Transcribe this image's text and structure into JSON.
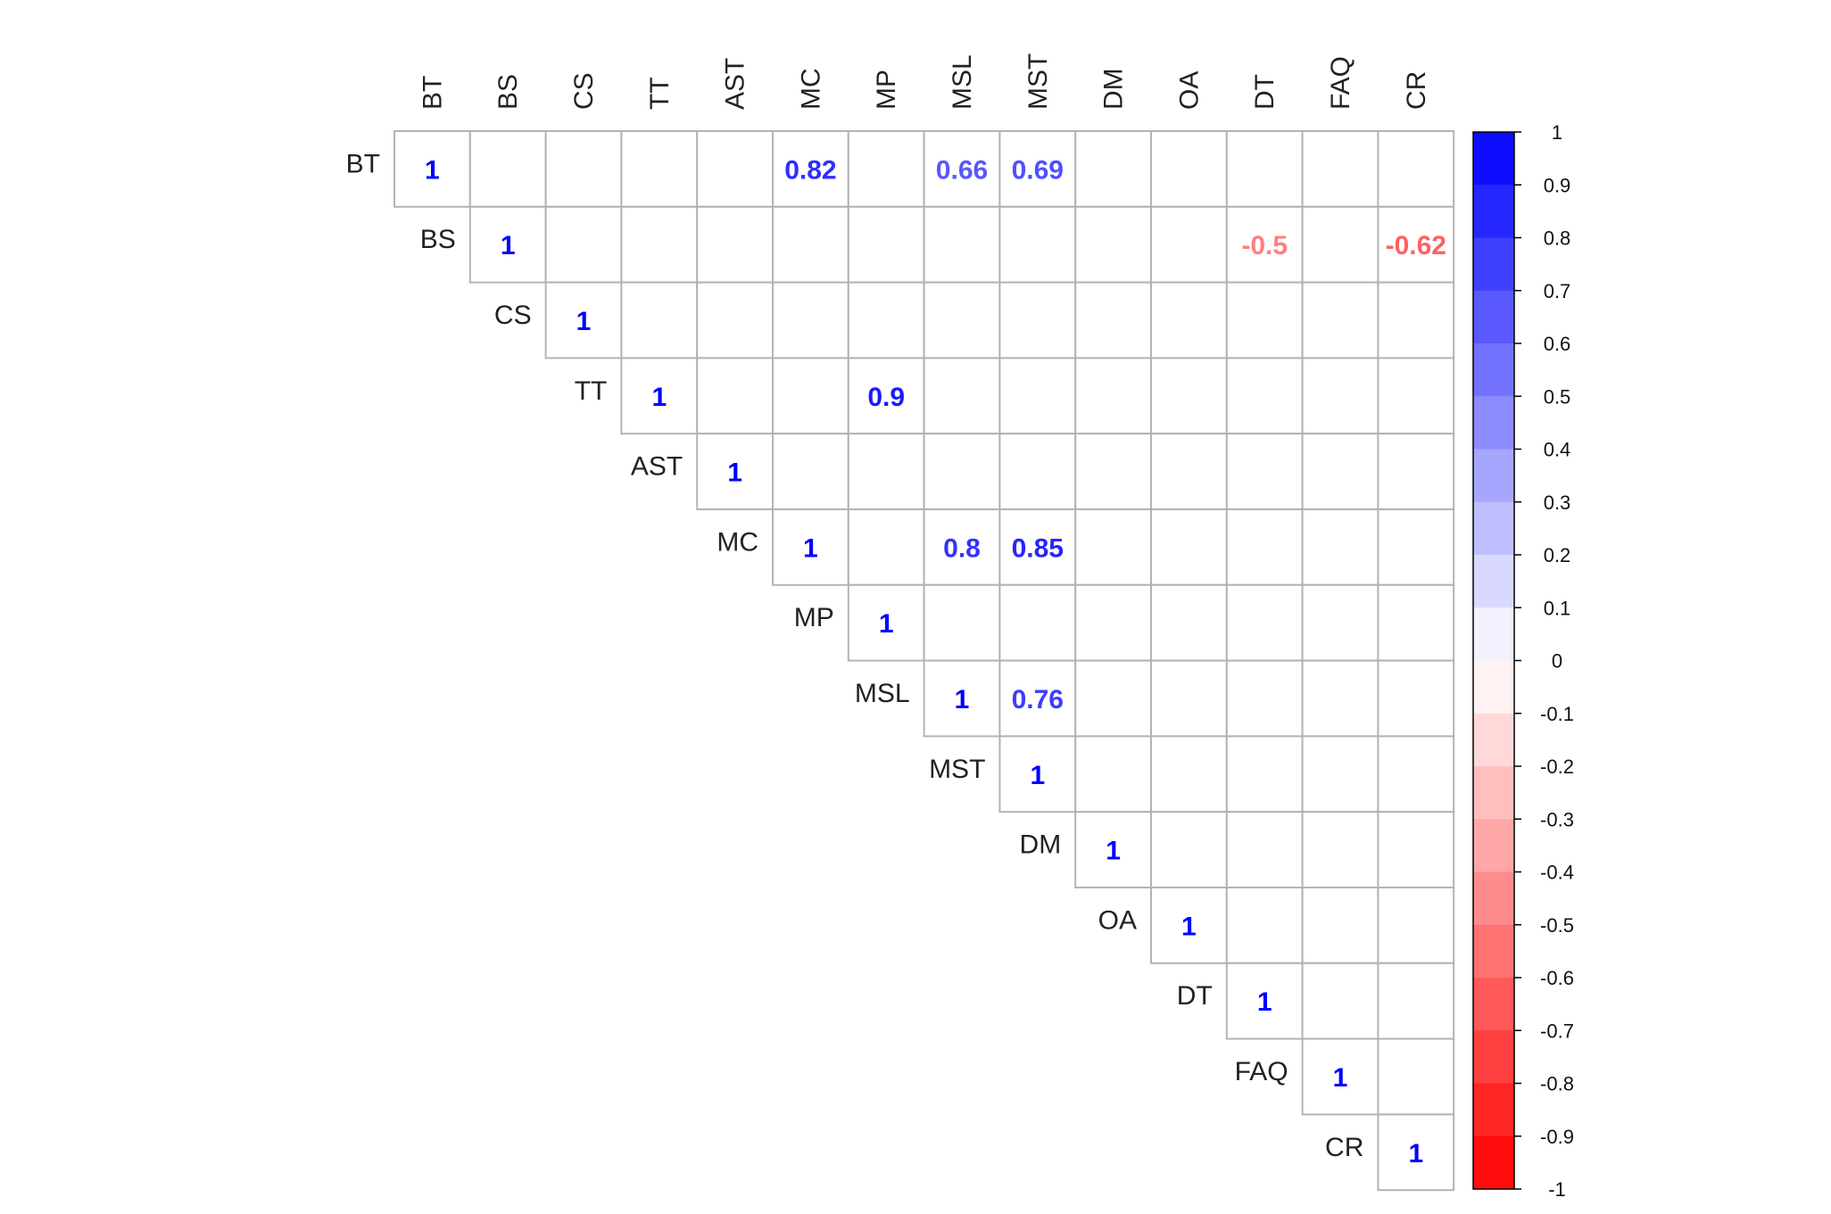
{
  "chart_data": {
    "type": "heatmap",
    "subtype": "correlation-matrix-upper-triangle",
    "title": "",
    "variables": [
      "BT",
      "BS",
      "CS",
      "TT",
      "AST",
      "MC",
      "MP",
      "MSL",
      "MST",
      "DM",
      "OA",
      "DT",
      "FAQ",
      "CR"
    ],
    "cells": [
      {
        "row": "BT",
        "col": "BT",
        "value": 1
      },
      {
        "row": "BT",
        "col": "MC",
        "value": 0.82
      },
      {
        "row": "BT",
        "col": "MSL",
        "value": 0.66
      },
      {
        "row": "BT",
        "col": "MST",
        "value": 0.69
      },
      {
        "row": "BS",
        "col": "BS",
        "value": 1
      },
      {
        "row": "BS",
        "col": "DT",
        "value": -0.5
      },
      {
        "row": "BS",
        "col": "CR",
        "value": -0.62
      },
      {
        "row": "CS",
        "col": "CS",
        "value": 1
      },
      {
        "row": "TT",
        "col": "TT",
        "value": 1
      },
      {
        "row": "TT",
        "col": "MP",
        "value": 0.9
      },
      {
        "row": "AST",
        "col": "AST",
        "value": 1
      },
      {
        "row": "MC",
        "col": "MC",
        "value": 1
      },
      {
        "row": "MC",
        "col": "MSL",
        "value": 0.8
      },
      {
        "row": "MC",
        "col": "MST",
        "value": 0.85
      },
      {
        "row": "MP",
        "col": "MP",
        "value": 1
      },
      {
        "row": "MSL",
        "col": "MSL",
        "value": 1
      },
      {
        "row": "MSL",
        "col": "MST",
        "value": 0.76
      },
      {
        "row": "MST",
        "col": "MST",
        "value": 1
      },
      {
        "row": "DM",
        "col": "DM",
        "value": 1
      },
      {
        "row": "OA",
        "col": "OA",
        "value": 1
      },
      {
        "row": "DT",
        "col": "DT",
        "value": 1
      },
      {
        "row": "FAQ",
        "col": "FAQ",
        "value": 1
      },
      {
        "row": "CR",
        "col": "CR",
        "value": 1
      }
    ],
    "colorbar": {
      "range": [
        -1,
        1
      ],
      "ticks": [
        "1",
        "0.9",
        "0.8",
        "0.7",
        "0.6",
        "0.5",
        "0.4",
        "0.3",
        "0.2",
        "0.1",
        "0",
        "-0.1",
        "-0.2",
        "-0.3",
        "-0.4",
        "-0.5",
        "-0.6",
        "-0.7",
        "-0.8",
        "-0.9",
        "-1"
      ],
      "positive_color": "#0000ff",
      "negative_color": "#ff0000",
      "neutral_color": "#ffffff",
      "position": "right"
    },
    "grid": true,
    "grid_color": "#b3b3b3"
  }
}
